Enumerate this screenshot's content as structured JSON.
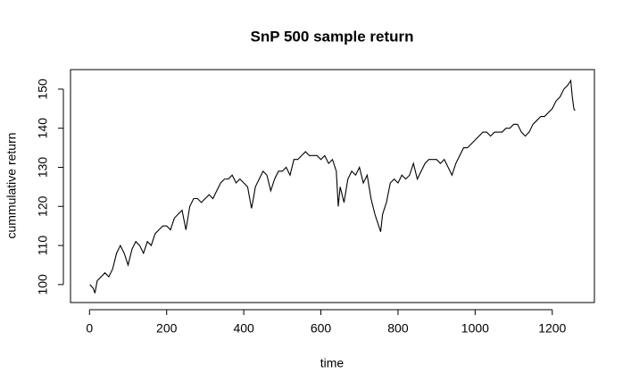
{
  "chart_data": {
    "type": "line",
    "title": "SnP 500 sample return",
    "x_label": "time",
    "y_label": "cummulative return",
    "x": [
      1,
      10,
      14,
      20,
      30,
      40,
      50,
      60,
      70,
      80,
      90,
      100,
      110,
      120,
      130,
      140,
      150,
      160,
      170,
      180,
      190,
      200,
      210,
      220,
      230,
      240,
      250,
      260,
      270,
      280,
      290,
      300,
      310,
      320,
      330,
      340,
      350,
      360,
      370,
      380,
      390,
      400,
      410,
      420,
      425,
      430,
      440,
      450,
      460,
      470,
      480,
      490,
      500,
      510,
      520,
      530,
      540,
      550,
      560,
      570,
      580,
      590,
      600,
      610,
      620,
      630,
      640,
      645,
      650,
      660,
      665,
      670,
      680,
      690,
      700,
      710,
      720,
      730,
      740,
      750,
      755,
      760,
      770,
      780,
      790,
      800,
      810,
      820,
      830,
      840,
      850,
      860,
      870,
      880,
      890,
      900,
      910,
      920,
      930,
      940,
      950,
      960,
      970,
      980,
      990,
      1000,
      1010,
      1020,
      1030,
      1040,
      1050,
      1060,
      1070,
      1080,
      1090,
      1100,
      1110,
      1120,
      1130,
      1140,
      1150,
      1160,
      1170,
      1180,
      1190,
      1200,
      1210,
      1220,
      1230,
      1240,
      1248,
      1252,
      1256,
      1259
    ],
    "series": [
      {
        "name": "return",
        "color": "#000000",
        "values": [
          100,
          99,
          97.8,
          101,
          102,
          103,
          102,
          104,
          108,
          110,
          108,
          105,
          109,
          111,
          110,
          108,
          111,
          110,
          113,
          114,
          115,
          115,
          114,
          117,
          118,
          119,
          114,
          120,
          122,
          122,
          121,
          122,
          123,
          122,
          124,
          126,
          127,
          127,
          128,
          126,
          127,
          126,
          125,
          119.5,
          122,
          125,
          127,
          129,
          128,
          124,
          127,
          129,
          129,
          130,
          128,
          132,
          132,
          133,
          134,
          133,
          133,
          133,
          132,
          133,
          131,
          132,
          129,
          120,
          125,
          121,
          124,
          127,
          129,
          128,
          130,
          126,
          128,
          122,
          118,
          115,
          113.5,
          118,
          121,
          126,
          127,
          126,
          128,
          127,
          128,
          131,
          127,
          129,
          131,
          132,
          132,
          132,
          131,
          132,
          130,
          128,
          131,
          133,
          135,
          135,
          136,
          137,
          138,
          139,
          139,
          138,
          139,
          139,
          139,
          140,
          140,
          141,
          141,
          139,
          138,
          139,
          141,
          142,
          143,
          143,
          144,
          145,
          147,
          148,
          150,
          151,
          152.2,
          148,
          145,
          144.5
        ]
      }
    ],
    "xlim": [
      -49.3,
      1309.3
    ],
    "ylim": [
      95.4,
      155
    ],
    "xticks": [
      0,
      200,
      400,
      600,
      800,
      1000,
      1200
    ],
    "yticks": [
      100,
      110,
      120,
      130,
      140,
      150
    ]
  }
}
